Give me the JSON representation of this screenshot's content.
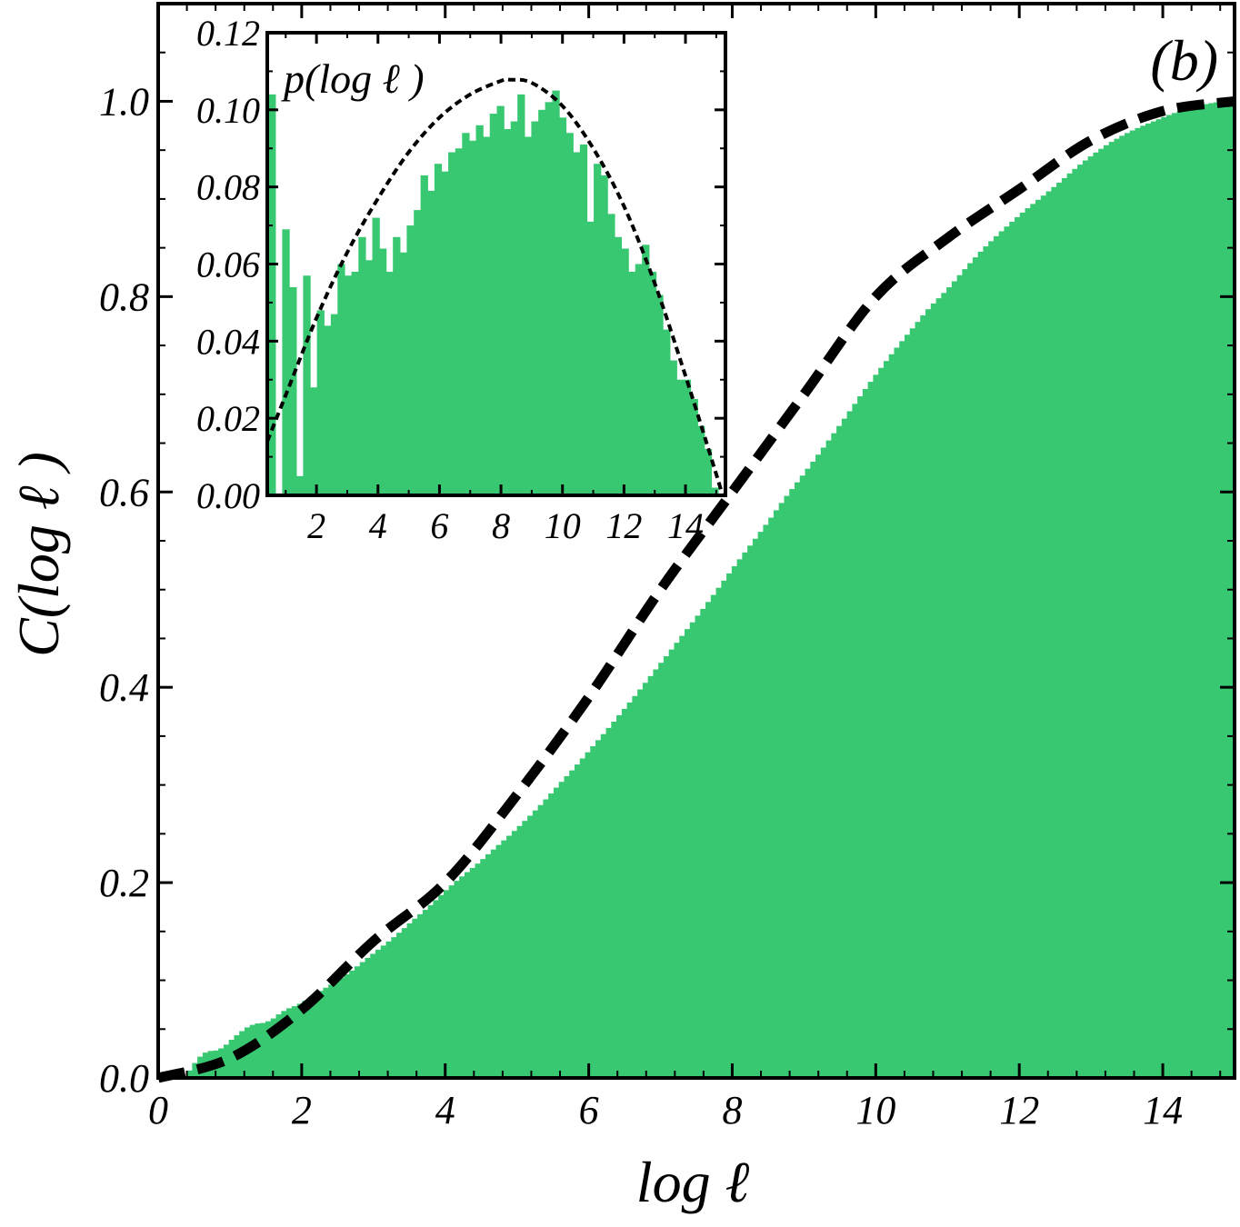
{
  "chart_data": [
    {
      "type": "bar",
      "role": "main",
      "panel_label": "(b)",
      "xlabel": "log ℓ",
      "ylabel": "C(log ℓ )",
      "xlim": [
        0,
        15
      ],
      "ylim": [
        0,
        1.1
      ],
      "xticks": [
        0,
        2,
        4,
        6,
        8,
        10,
        12,
        14
      ],
      "xtick_labels": [
        "0",
        "2",
        "4",
        "6",
        "8",
        "10",
        "12",
        "14"
      ],
      "yticks": [
        0,
        0.2,
        0.4,
        0.6,
        0.8,
        1.0
      ],
      "ytick_labels": [
        "0.0",
        "0.2",
        "0.4",
        "0.6",
        "0.8",
        "1.0"
      ],
      "bar_color": "#38c872",
      "fit_color": "#000000",
      "histogram": {
        "bin_start": 0.4,
        "bin_end": 15.0,
        "bin_count": 200,
        "description": "cumulative fraction of histogram counts from the inset, rising from 0 to 1"
      },
      "fit_curve": {
        "style": "dashed",
        "x": [
          0,
          1,
          2,
          3,
          4,
          5,
          6,
          7,
          8,
          9,
          10,
          11,
          12,
          13,
          14,
          15
        ],
        "y": [
          0.0,
          0.02,
          0.07,
          0.14,
          0.2,
          0.29,
          0.39,
          0.5,
          0.6,
          0.7,
          0.8,
          0.86,
          0.91,
          0.96,
          0.99,
          1.0
        ]
      }
    },
    {
      "type": "bar",
      "role": "inset",
      "ylabel": "p(log ℓ )",
      "xlim": [
        0.4,
        15.3
      ],
      "ylim": [
        0,
        0.12
      ],
      "xticks": [
        2,
        4,
        6,
        8,
        10,
        12,
        14
      ],
      "xtick_labels": [
        "2",
        "4",
        "6",
        "8",
        "10",
        "12",
        "14"
      ],
      "yticks": [
        0,
        0.02,
        0.04,
        0.06,
        0.08,
        0.1,
        0.12
      ],
      "ytick_labels": [
        "0.00",
        "0.02",
        "0.04",
        "0.06",
        "0.08",
        "0.10",
        "0.12"
      ],
      "bar_color": "#38c872",
      "fit_color": "#000000",
      "bins": {
        "x": [
          0.55,
          0.78,
          1.0,
          1.23,
          1.45,
          1.68,
          1.9,
          2.13,
          2.35,
          2.58,
          2.8,
          3.03,
          3.25,
          3.48,
          3.7,
          3.93,
          4.15,
          4.38,
          4.6,
          4.83,
          5.05,
          5.28,
          5.5,
          5.73,
          5.95,
          6.18,
          6.4,
          6.63,
          6.85,
          7.08,
          7.3,
          7.53,
          7.75,
          7.98,
          8.2,
          8.43,
          8.65,
          8.88,
          9.1,
          9.33,
          9.55,
          9.78,
          10.0,
          10.23,
          10.45,
          10.68,
          10.9,
          11.13,
          11.35,
          11.58,
          11.8,
          12.03,
          12.25,
          12.48,
          12.7,
          12.93,
          13.15,
          13.38,
          13.6,
          13.83,
          14.05,
          14.28,
          14.5,
          14.73,
          14.95
        ],
        "values": [
          0.104,
          0.0,
          0.069,
          0.054,
          0.005,
          0.057,
          0.028,
          0.048,
          0.044,
          0.047,
          0.06,
          0.057,
          0.058,
          0.067,
          0.061,
          0.072,
          0.064,
          0.058,
          0.067,
          0.063,
          0.07,
          0.074,
          0.083,
          0.079,
          0.086,
          0.084,
          0.089,
          0.09,
          0.094,
          0.092,
          0.096,
          0.093,
          0.099,
          0.101,
          0.095,
          0.097,
          0.104,
          0.093,
          0.097,
          0.1,
          0.102,
          0.105,
          0.098,
          0.094,
          0.089,
          0.091,
          0.071,
          0.086,
          0.083,
          0.073,
          0.067,
          0.064,
          0.058,
          0.06,
          0.065,
          0.058,
          0.052,
          0.043,
          0.035,
          0.03,
          0.03,
          0.025,
          0.018,
          0.012,
          0.002
        ]
      },
      "fit_curve": {
        "style": "dotted",
        "x": [
          0.4,
          1.0,
          2.0,
          3.0,
          4.0,
          5.0,
          6.0,
          7.0,
          8.0,
          8.3,
          9.0,
          10.0,
          11.0,
          12.0,
          13.0,
          14.0,
          15.0,
          15.2
        ],
        "y": [
          0.014,
          0.026,
          0.046,
          0.063,
          0.077,
          0.089,
          0.098,
          0.104,
          0.1075,
          0.1078,
          0.107,
          0.101,
          0.09,
          0.075,
          0.055,
          0.031,
          0.0055,
          0.0
        ]
      }
    }
  ]
}
